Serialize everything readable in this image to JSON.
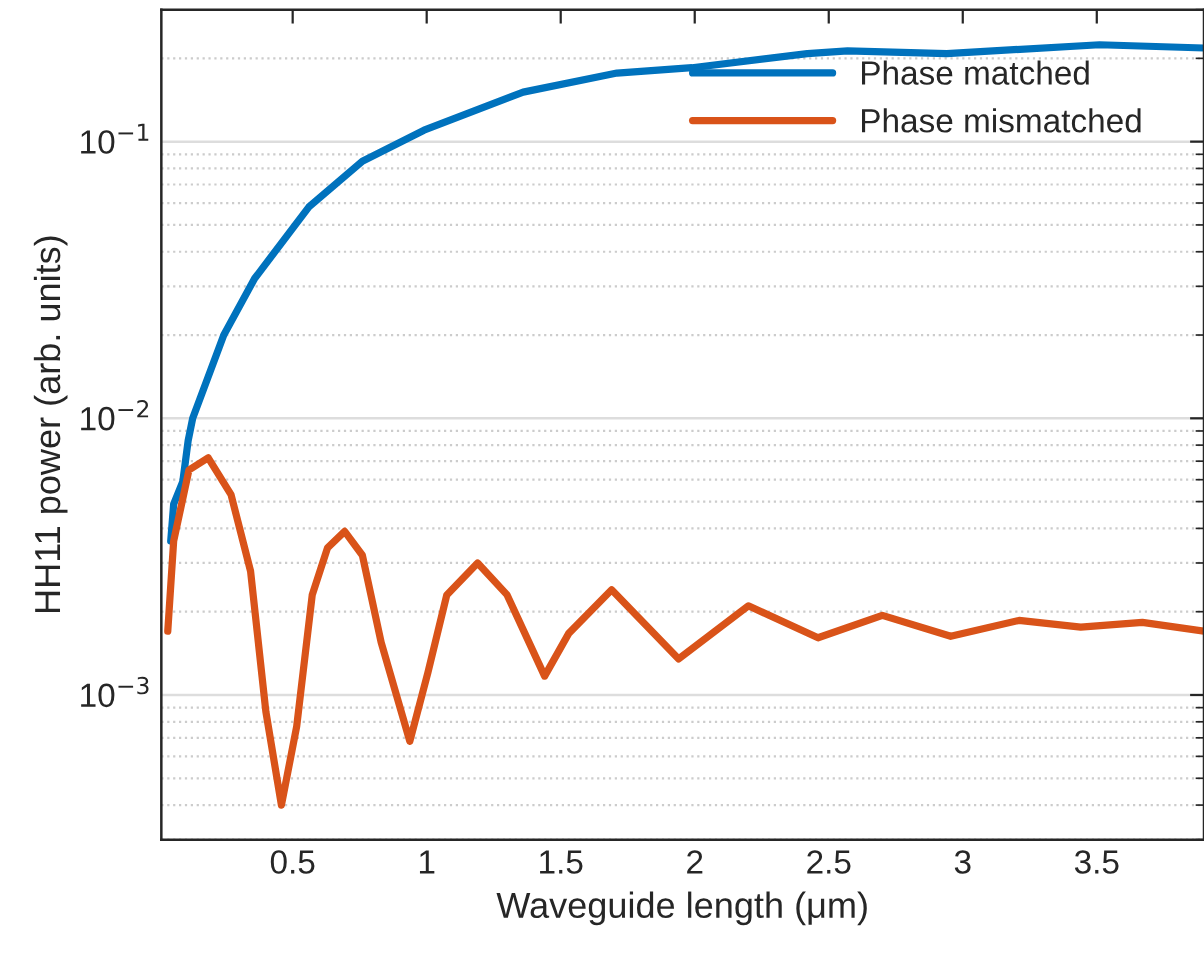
{
  "chart_data": {
    "type": "line",
    "xlabel": "Waveguide length (μm)",
    "ylabel": "HH11 power (arb. units)",
    "log": "y",
    "grid": "y",
    "legend": "top right",
    "line_style": "solid",
    "marker": "none",
    "xlim": [
      0.01,
      3.9
    ],
    "ylim": [
      0.0003,
      0.3
    ],
    "xticks": [
      0.5,
      1,
      1.5,
      2,
      2.5,
      3,
      3.5
    ],
    "yticks": [
      {
        "value": 0.001,
        "label": "10$^{−3}$"
      },
      {
        "value": 0.01,
        "label": "10$^{−2}$"
      },
      {
        "value": 0.1,
        "label": "10$^{−1}$"
      }
    ],
    "series": [
      {
        "name": "Phase matched",
        "color": "#0072bd",
        "x": [
          0.045,
          0.056,
          0.09,
          0.11,
          0.127,
          0.243,
          0.358,
          0.56,
          0.76,
          0.99,
          1.36,
          1.71,
          1.99,
          2.42,
          2.57,
          2.94,
          3.51,
          3.9
        ],
        "values": [
          0.0036,
          0.0049,
          0.0059,
          0.0083,
          0.01,
          0.02,
          0.032,
          0.058,
          0.085,
          0.11,
          0.151,
          0.177,
          0.185,
          0.208,
          0.213,
          0.208,
          0.224,
          0.218
        ]
      },
      {
        "name": "Phase mismatched",
        "color": "#d95319",
        "x": [
          0.034,
          0.056,
          0.113,
          0.185,
          0.27,
          0.343,
          0.4,
          0.458,
          0.515,
          0.573,
          0.63,
          0.694,
          0.76,
          0.83,
          0.937,
          1.004,
          1.075,
          1.19,
          1.3,
          1.44,
          1.53,
          1.69,
          1.82,
          1.94,
          2.2,
          2.46,
          2.7,
          2.955,
          3.21,
          3.44,
          3.67,
          3.9
        ],
        "values": [
          0.0017,
          0.0036,
          0.0065,
          0.0072,
          0.0053,
          0.0028,
          0.00087,
          0.0004,
          0.00077,
          0.0023,
          0.0034,
          0.0039,
          0.0032,
          0.00155,
          0.00068,
          0.0012,
          0.0023,
          0.003,
          0.0023,
          0.00117,
          0.00167,
          0.0024,
          0.00178,
          0.00135,
          0.0021,
          0.00161,
          0.00194,
          0.00163,
          0.00186,
          0.00176,
          0.00183,
          0.0017
        ]
      }
    ]
  }
}
